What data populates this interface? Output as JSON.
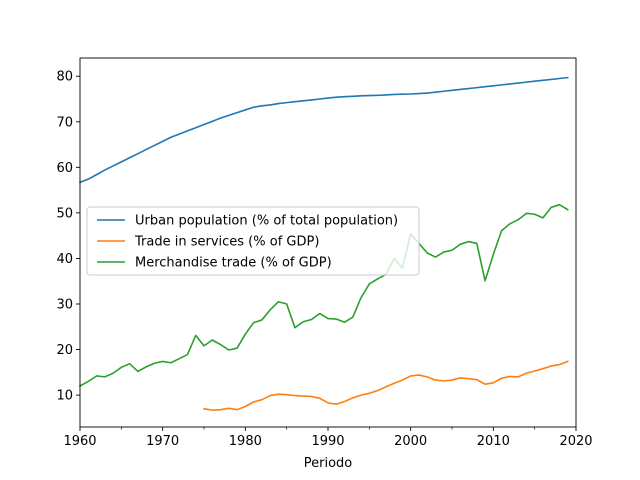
{
  "chart_data": {
    "type": "line",
    "title": "",
    "xlabel": "Periodo",
    "ylabel": "",
    "xlim": [
      1960,
      2020
    ],
    "ylim": [
      3,
      84
    ],
    "xticks": [
      1960,
      1970,
      1980,
      1990,
      2000,
      2010,
      2020
    ],
    "xticks_minor": [
      1965,
      1975,
      1985,
      1995,
      2005,
      2015
    ],
    "yticks": [
      10,
      20,
      30,
      40,
      50,
      60,
      70,
      80
    ],
    "grid": false,
    "legend_position": "center-left",
    "series": [
      {
        "name": "Urban population (% of total population)",
        "color": "#1f77b4",
        "x": [
          1960,
          1961,
          1962,
          1963,
          1964,
          1965,
          1966,
          1967,
          1968,
          1969,
          1970,
          1971,
          1972,
          1973,
          1974,
          1975,
          1976,
          1977,
          1978,
          1979,
          1980,
          1981,
          1982,
          1983,
          1984,
          1985,
          1986,
          1987,
          1988,
          1989,
          1990,
          1991,
          1992,
          1993,
          1994,
          1995,
          1996,
          1997,
          1998,
          1999,
          2000,
          2001,
          2002,
          2003,
          2004,
          2005,
          2006,
          2007,
          2008,
          2009,
          2010,
          2011,
          2012,
          2013,
          2014,
          2015,
          2016,
          2017,
          2018,
          2019
        ],
        "values": [
          56.7,
          57.4,
          58.4,
          59.4,
          60.3,
          61.2,
          62.1,
          63.0,
          63.9,
          64.8,
          65.7,
          66.6,
          67.3,
          68.0,
          68.7,
          69.4,
          70.1,
          70.8,
          71.4,
          72.0,
          72.6,
          73.2,
          73.5,
          73.7,
          74.0,
          74.2,
          74.4,
          74.6,
          74.8,
          75.0,
          75.2,
          75.4,
          75.5,
          75.6,
          75.7,
          75.75,
          75.8,
          75.9,
          76.0,
          76.05,
          76.1,
          76.2,
          76.3,
          76.5,
          76.7,
          76.9,
          77.1,
          77.3,
          77.5,
          77.7,
          77.9,
          78.1,
          78.3,
          78.5,
          78.7,
          78.9,
          79.1,
          79.3,
          79.5,
          79.7
        ]
      },
      {
        "name": "Trade in services (% of GDP)",
        "color": "#ff7f0e",
        "x": [
          1975,
          1976,
          1977,
          1978,
          1979,
          1980,
          1981,
          1982,
          1983,
          1984,
          1985,
          1986,
          1987,
          1988,
          1989,
          1990,
          1991,
          1992,
          1993,
          1994,
          1995,
          1996,
          1997,
          1998,
          1999,
          2000,
          2001,
          2002,
          2003,
          2004,
          2005,
          2006,
          2007,
          2008,
          2009,
          2010,
          2011,
          2012,
          2013,
          2014,
          2015,
          2016,
          2017,
          2018,
          2019
        ],
        "values": [
          7.0,
          6.7,
          6.8,
          7.1,
          6.8,
          7.5,
          8.5,
          9.0,
          9.9,
          10.2,
          10.1,
          9.9,
          9.8,
          9.7,
          9.3,
          8.3,
          8.0,
          8.6,
          9.4,
          10.0,
          10.4,
          11.0,
          11.8,
          12.6,
          13.3,
          14.2,
          14.4,
          14.0,
          13.3,
          13.1,
          13.3,
          13.8,
          13.6,
          13.4,
          12.4,
          12.7,
          13.7,
          14.1,
          14.0,
          14.8,
          15.3,
          15.8,
          16.4,
          16.7,
          17.4
        ]
      },
      {
        "name": "Merchandise trade (% of GDP)",
        "color": "#2ca02c",
        "x": [
          1960,
          1961,
          1962,
          1963,
          1964,
          1965,
          1966,
          1967,
          1968,
          1969,
          1970,
          1971,
          1972,
          1973,
          1974,
          1975,
          1976,
          1977,
          1978,
          1979,
          1980,
          1981,
          1982,
          1983,
          1984,
          1985,
          1986,
          1987,
          1988,
          1989,
          1990,
          1991,
          1992,
          1993,
          1994,
          1995,
          1996,
          1997,
          1998,
          1999,
          2000,
          2001,
          2002,
          2003,
          2004,
          2005,
          2006,
          2007,
          2008,
          2009,
          2010,
          2011,
          2012,
          2013,
          2014,
          2015,
          2016,
          2017,
          2018,
          2019
        ],
        "values": [
          12.0,
          13.0,
          14.2,
          14.0,
          14.8,
          16.1,
          16.9,
          15.2,
          16.2,
          17.0,
          17.4,
          17.1,
          18.0,
          18.9,
          23.1,
          20.8,
          22.1,
          21.1,
          19.9,
          20.3,
          23.4,
          25.9,
          26.5,
          28.7,
          30.5,
          30.0,
          24.8,
          26.1,
          26.6,
          27.9,
          26.8,
          26.7,
          26.0,
          27.1,
          31.4,
          34.4,
          35.5,
          36.5,
          40.0,
          37.9,
          45.4,
          43.3,
          41.2,
          40.3,
          41.4,
          41.8,
          43.1,
          43.7,
          43.3,
          35.1,
          40.9,
          46.1,
          47.6,
          48.5,
          49.9,
          49.7,
          48.9,
          51.2,
          51.8,
          50.7
        ]
      }
    ]
  }
}
